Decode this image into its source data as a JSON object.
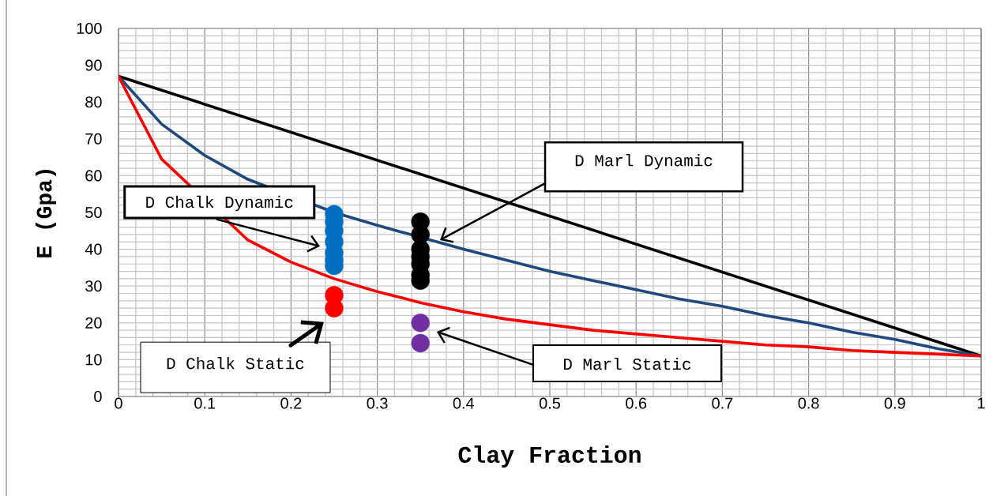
{
  "chart_data": {
    "type": "line",
    "xlabel": "Clay Fraction",
    "ylabel": "E  (Gpa)",
    "xlim": [
      0,
      1
    ],
    "ylim": [
      0,
      100
    ],
    "xticks": [
      0,
      0.1,
      0.2,
      0.3,
      0.4,
      0.5,
      0.6,
      0.7,
      0.8,
      0.9,
      1
    ],
    "yticks": [
      0,
      10,
      20,
      30,
      40,
      50,
      60,
      70,
      80,
      90,
      100
    ],
    "grid": true,
    "line_style": "solid",
    "series": [
      {
        "color": "#000000",
        "x": [
          0,
          1
        ],
        "values": [
          87,
          11
        ]
      },
      {
        "color": "#1F497D",
        "x": [
          0,
          0.05,
          0.1,
          0.15,
          0.25,
          0.3,
          0.4,
          0.45,
          0.5,
          0.55,
          0.6,
          0.65,
          0.7,
          0.75,
          0.8,
          0.85,
          0.9,
          0.95,
          1
        ],
        "values": [
          87,
          74,
          65.5,
          59,
          50,
          46.5,
          40,
          37,
          34,
          31.5,
          29,
          26.5,
          24.5,
          22,
          20,
          17.5,
          15.5,
          13,
          11
        ]
      },
      {
        "color": "#FF0000",
        "x": [
          0,
          0.05,
          0.15,
          0.2,
          0.25,
          0.3,
          0.35,
          0.4,
          0.45,
          0.5,
          0.55,
          0.6,
          0.65,
          0.7,
          0.75,
          0.8,
          0.85,
          0.9,
          0.95,
          1
        ],
        "values": [
          87,
          64.5,
          42.5,
          36.5,
          32,
          28.5,
          25.5,
          23,
          21,
          19.5,
          18,
          17,
          16,
          15,
          14,
          13.5,
          12.5,
          12,
          11.5,
          11
        ]
      },
      {
        "type": "scatter",
        "marker": "circle",
        "color": "#0070C0",
        "x": [
          0.25,
          0.25,
          0.25,
          0.25,
          0.25,
          0.25,
          0.25
        ],
        "values": [
          49.5,
          47.5,
          45,
          42,
          39,
          37,
          35.5
        ]
      },
      {
        "type": "scatter",
        "marker": "circle",
        "color": "#FF0000",
        "x": [
          0.25,
          0.25
        ],
        "values": [
          27.5,
          24
        ]
      },
      {
        "type": "scatter",
        "marker": "circle",
        "color": "#000000",
        "x": [
          0.35,
          0.35,
          0.35,
          0.35,
          0.35,
          0.35,
          0.35
        ],
        "values": [
          47.5,
          44,
          40,
          38,
          36,
          33,
          31.5
        ]
      },
      {
        "type": "scatter",
        "marker": "circle",
        "color": "#7030A0",
        "x": [
          0.35,
          0.35
        ],
        "values": [
          20,
          14.5
        ]
      }
    ],
    "annotations": [
      "D Marl Dynamic",
      "D Chalk Dynamic",
      "D Chalk Static",
      "D Marl Static"
    ]
  }
}
